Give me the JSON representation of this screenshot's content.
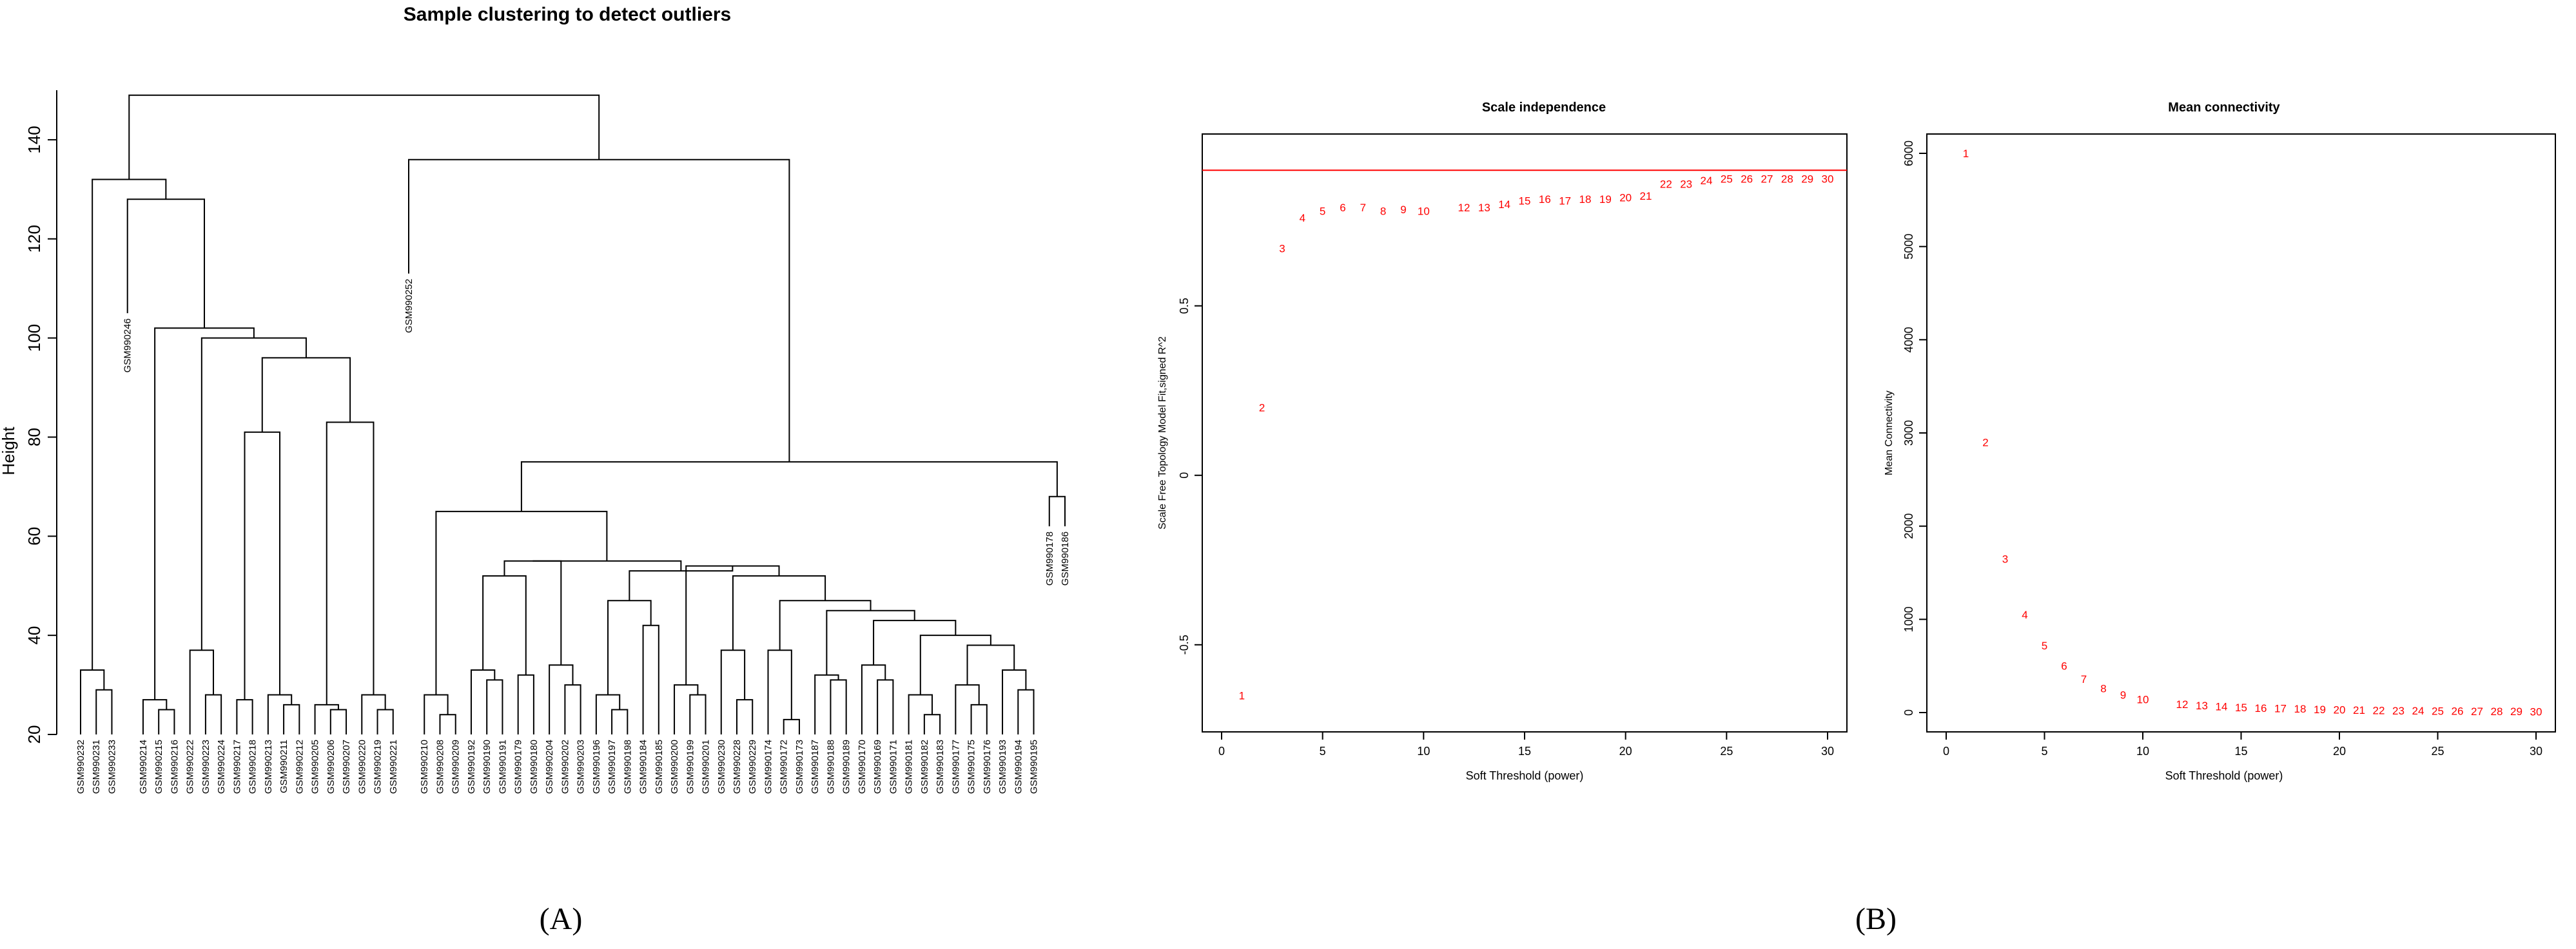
{
  "panel_labels": {
    "a": "(A)",
    "b": "(B)"
  },
  "colors": {
    "ink": "#000000",
    "points": "#ff0000",
    "cutline": "#ff0000"
  },
  "chart_data": [
    {
      "type": "dendrogram",
      "title": "Sample clustering to detect outliers",
      "ylabel": "Height",
      "ylim": [
        20,
        150
      ],
      "yticks": [
        20,
        40,
        60,
        80,
        100,
        120,
        140
      ],
      "leaves": [
        {
          "label": "GSM990232",
          "h": 20
        },
        {
          "label": "GSM990231",
          "h": 20
        },
        {
          "label": "GSM990233",
          "h": 20
        },
        {
          "label": "GSM990246",
          "h": 105
        },
        {
          "label": "GSM990214",
          "h": 20
        },
        {
          "label": "GSM990215",
          "h": 20
        },
        {
          "label": "GSM990216",
          "h": 20
        },
        {
          "label": "GSM990222",
          "h": 20
        },
        {
          "label": "GSM990223",
          "h": 20
        },
        {
          "label": "GSM990224",
          "h": 20
        },
        {
          "label": "GSM990217",
          "h": 20
        },
        {
          "label": "GSM990218",
          "h": 20
        },
        {
          "label": "GSM990213",
          "h": 20
        },
        {
          "label": "GSM990211",
          "h": 20
        },
        {
          "label": "GSM990212",
          "h": 20
        },
        {
          "label": "GSM990205",
          "h": 20
        },
        {
          "label": "GSM990206",
          "h": 20
        },
        {
          "label": "GSM990207",
          "h": 20
        },
        {
          "label": "GSM990220",
          "h": 20
        },
        {
          "label": "GSM990219",
          "h": 20
        },
        {
          "label": "GSM990221",
          "h": 20
        },
        {
          "label": "GSM990252",
          "h": 113
        },
        {
          "label": "GSM990210",
          "h": 20
        },
        {
          "label": "GSM990208",
          "h": 20
        },
        {
          "label": "GSM990209",
          "h": 20
        },
        {
          "label": "GSM990192",
          "h": 20
        },
        {
          "label": "GSM990190",
          "h": 20
        },
        {
          "label": "GSM990191",
          "h": 20
        },
        {
          "label": "GSM990179",
          "h": 20
        },
        {
          "label": "GSM990180",
          "h": 20
        },
        {
          "label": "GSM990204",
          "h": 20
        },
        {
          "label": "GSM990202",
          "h": 20
        },
        {
          "label": "GSM990203",
          "h": 20
        },
        {
          "label": "GSM990196",
          "h": 20
        },
        {
          "label": "GSM990197",
          "h": 20
        },
        {
          "label": "GSM990198",
          "h": 20
        },
        {
          "label": "GSM990184",
          "h": 20
        },
        {
          "label": "GSM990185",
          "h": 20
        },
        {
          "label": "GSM990200",
          "h": 20
        },
        {
          "label": "GSM990199",
          "h": 20
        },
        {
          "label": "GSM990201",
          "h": 20
        },
        {
          "label": "GSM990230",
          "h": 20
        },
        {
          "label": "GSM990228",
          "h": 20
        },
        {
          "label": "GSM990229",
          "h": 20
        },
        {
          "label": "GSM990174",
          "h": 20
        },
        {
          "label": "GSM990172",
          "h": 20
        },
        {
          "label": "GSM990173",
          "h": 20
        },
        {
          "label": "GSM990187",
          "h": 20
        },
        {
          "label": "GSM990188",
          "h": 20
        },
        {
          "label": "GSM990189",
          "h": 20
        },
        {
          "label": "GSM990170",
          "h": 20
        },
        {
          "label": "GSM990169",
          "h": 20
        },
        {
          "label": "GSM990171",
          "h": 20
        },
        {
          "label": "GSM990181",
          "h": 20
        },
        {
          "label": "GSM990182",
          "h": 20
        },
        {
          "label": "GSM990183",
          "h": 20
        },
        {
          "label": "GSM990177",
          "h": 20
        },
        {
          "label": "GSM990175",
          "h": 20
        },
        {
          "label": "GSM990176",
          "h": 20
        },
        {
          "label": "GSM990193",
          "h": 20
        },
        {
          "label": "GSM990194",
          "h": 20
        },
        {
          "label": "GSM990195",
          "h": 20
        },
        {
          "label": "GSM990178",
          "h": 62
        },
        {
          "label": "GSM990186",
          "h": 62
        }
      ]
    },
    {
      "type": "scatter",
      "title": "Scale independence",
      "xlabel": "Soft Threshold (power)",
      "ylabel": "Scale Free Topology Model Fit,signed R^2",
      "xlim": [
        0,
        30
      ],
      "ylim": [
        -0.7,
        0.95
      ],
      "xticks": [
        0,
        5,
        10,
        15,
        20,
        25,
        30
      ],
      "yticks": [
        -0.5,
        0.0,
        0.5
      ],
      "hline": 0.9,
      "points": [
        {
          "x": 1,
          "y": -0.65
        },
        {
          "x": 2,
          "y": 0.2
        },
        {
          "x": 3,
          "y": 0.67
        },
        {
          "x": 4,
          "y": 0.76
        },
        {
          "x": 5,
          "y": 0.78
        },
        {
          "x": 6,
          "y": 0.79
        },
        {
          "x": 7,
          "y": 0.79
        },
        {
          "x": 8,
          "y": 0.78
        },
        {
          "x": 9,
          "y": 0.785
        },
        {
          "x": 10,
          "y": 0.78
        },
        {
          "x": 12,
          "y": 0.79
        },
        {
          "x": 13,
          "y": 0.79
        },
        {
          "x": 14,
          "y": 0.8
        },
        {
          "x": 15,
          "y": 0.81
        },
        {
          "x": 16,
          "y": 0.815
        },
        {
          "x": 17,
          "y": 0.81
        },
        {
          "x": 18,
          "y": 0.815
        },
        {
          "x": 19,
          "y": 0.815
        },
        {
          "x": 20,
          "y": 0.82
        },
        {
          "x": 21,
          "y": 0.825
        },
        {
          "x": 22,
          "y": 0.86
        },
        {
          "x": 23,
          "y": 0.86
        },
        {
          "x": 24,
          "y": 0.87
        },
        {
          "x": 25,
          "y": 0.875
        },
        {
          "x": 26,
          "y": 0.875
        },
        {
          "x": 27,
          "y": 0.875
        },
        {
          "x": 28,
          "y": 0.875
        },
        {
          "x": 29,
          "y": 0.875
        },
        {
          "x": 30,
          "y": 0.875
        }
      ]
    },
    {
      "type": "scatter",
      "title": "Mean connectivity",
      "xlabel": "Soft Threshold (power)",
      "ylabel": "Mean Connectivity",
      "xlim": [
        0,
        30
      ],
      "ylim": [
        0,
        6000
      ],
      "xticks": [
        0,
        5,
        10,
        15,
        20,
        25,
        30
      ],
      "yticks": [
        0,
        1000,
        2000,
        3000,
        4000,
        5000,
        6000
      ],
      "points": [
        {
          "x": 1,
          "y": 6000
        },
        {
          "x": 2,
          "y": 2900
        },
        {
          "x": 3,
          "y": 1650
        },
        {
          "x": 4,
          "y": 1050
        },
        {
          "x": 5,
          "y": 720
        },
        {
          "x": 6,
          "y": 500
        },
        {
          "x": 7,
          "y": 360
        },
        {
          "x": 8,
          "y": 260
        },
        {
          "x": 9,
          "y": 190
        },
        {
          "x": 10,
          "y": 140
        },
        {
          "x": 12,
          "y": 90
        },
        {
          "x": 13,
          "y": 75
        },
        {
          "x": 14,
          "y": 65
        },
        {
          "x": 15,
          "y": 55
        },
        {
          "x": 16,
          "y": 50
        },
        {
          "x": 17,
          "y": 45
        },
        {
          "x": 18,
          "y": 40
        },
        {
          "x": 19,
          "y": 35
        },
        {
          "x": 20,
          "y": 30
        },
        {
          "x": 21,
          "y": 28
        },
        {
          "x": 22,
          "y": 25
        },
        {
          "x": 23,
          "y": 22
        },
        {
          "x": 24,
          "y": 20
        },
        {
          "x": 25,
          "y": 18
        },
        {
          "x": 26,
          "y": 16
        },
        {
          "x": 27,
          "y": 15
        },
        {
          "x": 28,
          "y": 14
        },
        {
          "x": 29,
          "y": 13
        },
        {
          "x": 30,
          "y": 12
        }
      ]
    }
  ]
}
